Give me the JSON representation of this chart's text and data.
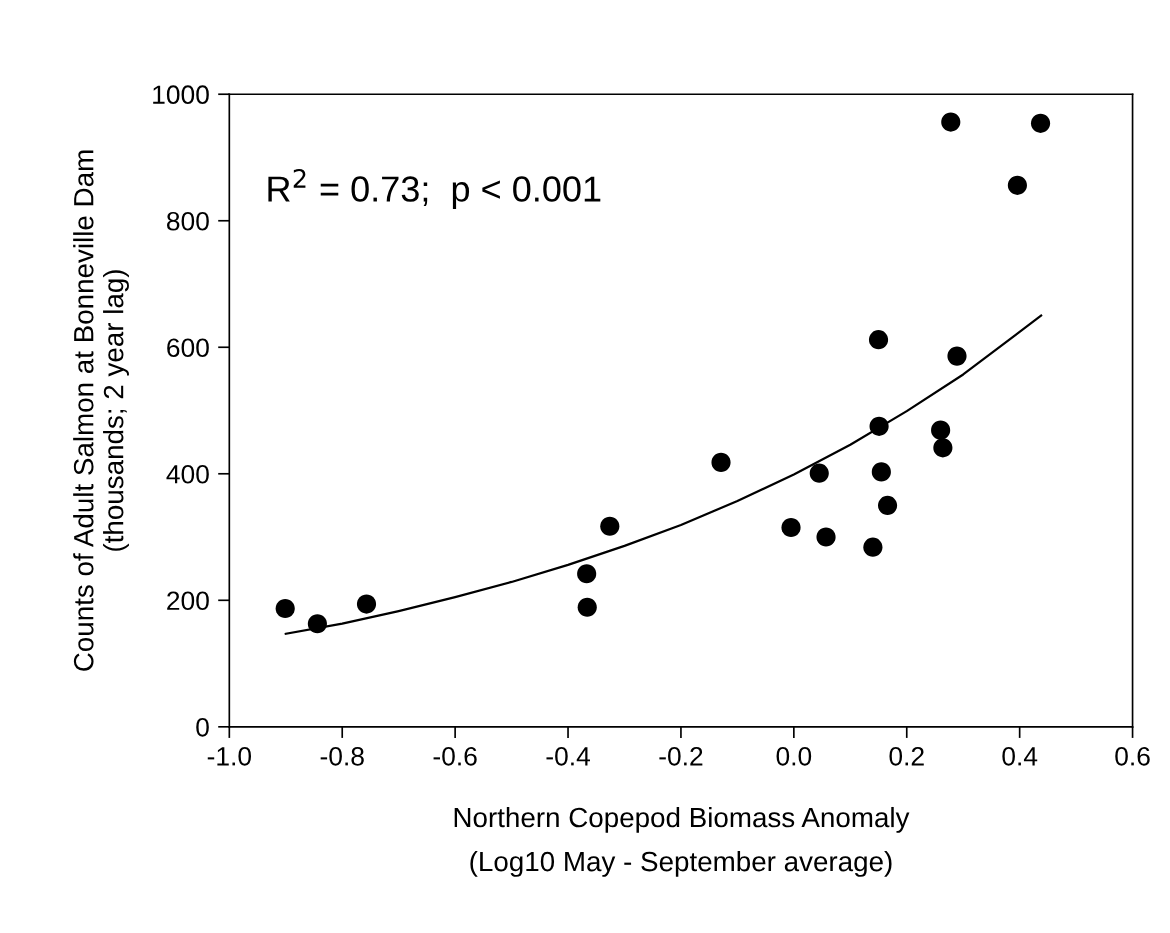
{
  "chart_data": {
    "type": "scatter",
    "xlabel": "Northern Copepod Biomass Anomaly\n(Log10 May - September average)",
    "ylabel": "Counts of Adult Salmon at Bonneville Dam\n(thousands; 2 year lag)",
    "annotations": [
      "R$^{2}$ = 0.73;  p < 0.001"
    ],
    "xlim": [
      -1.0,
      0.6
    ],
    "xticks": [
      {
        "value": -1.0,
        "label": "-1.0"
      },
      {
        "value": -0.8,
        "label": "-0.8"
      },
      {
        "value": -0.6,
        "label": "-0.6"
      },
      {
        "value": -0.4,
        "label": "-0.4"
      },
      {
        "value": -0.2,
        "label": "-0.2"
      },
      {
        "value": 0.0,
        "label": "0.0"
      },
      {
        "value": 0.2,
        "label": "0.2"
      },
      {
        "value": 0.4,
        "label": "0.4"
      },
      {
        "value": 0.6,
        "label": "0.6"
      }
    ],
    "ylim": [
      0,
      1000
    ],
    "yticks": [
      0,
      200,
      400,
      600,
      800,
      1000
    ],
    "grid": false,
    "legend": false,
    "marker": "circle",
    "series": [
      {
        "color": "#000000",
        "x": [
          -0.901,
          -0.844,
          -0.757,
          -0.367,
          -0.366,
          -0.326,
          -0.129,
          -0.005,
          0.045,
          0.057,
          0.14,
          0.15,
          0.151,
          0.155,
          0.166,
          0.26,
          0.264,
          0.278,
          0.289,
          0.396,
          0.437
        ],
        "values": [
          187,
          163,
          194,
          242,
          189,
          317,
          418,
          315,
          401,
          300,
          284,
          612,
          475,
          403,
          350,
          469,
          441,
          956,
          586,
          856,
          954
        ]
      },
      {
        "type": "line",
        "color": "#000000",
        "marker": "none",
        "line_style": "solid",
        "x": [
          -0.9,
          -0.8,
          -0.7,
          -0.6,
          -0.5,
          -0.4,
          -0.3,
          -0.2,
          -0.1,
          0.0,
          0.1,
          0.2,
          0.3,
          0.438
        ],
        "values": [
          147,
          163,
          183,
          205,
          229,
          256,
          286,
          319,
          357,
          399,
          446,
          499,
          557,
          650
        ]
      }
    ]
  }
}
